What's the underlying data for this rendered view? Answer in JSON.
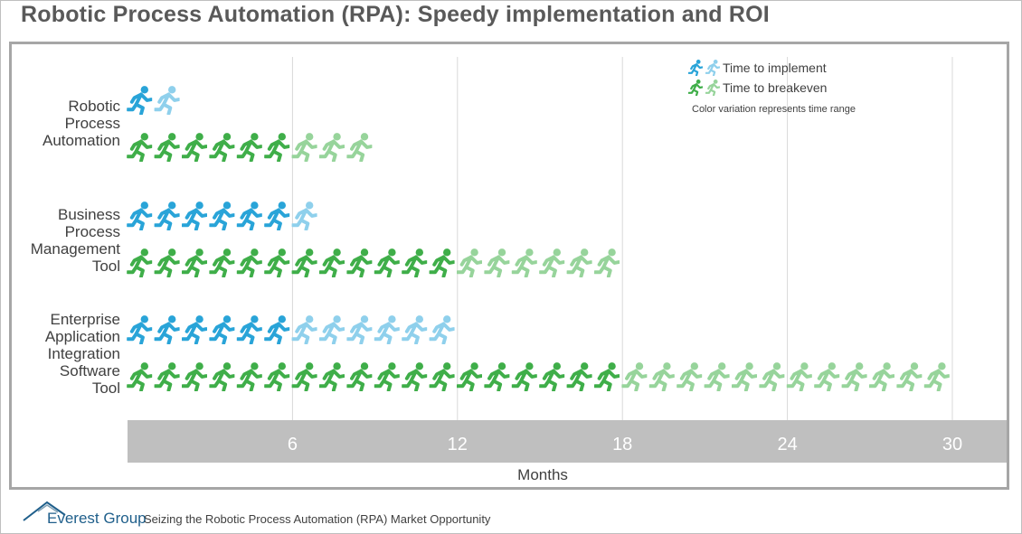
{
  "title": "Robotic Process Automation (RPA): Speedy implementation and ROI",
  "footer": {
    "logo": "Everest Group",
    "tagline": "Seizing the Robotic Process Automation (RPA) Market Opportunity"
  },
  "colors": {
    "implement_dark": "#29a4d8",
    "implement_light": "#8fd0ec",
    "breakeven_dark": "#3fae49",
    "breakeven_light": "#97d49b",
    "axis_band": "#bfbfbf",
    "grid": "#d9d9d9"
  },
  "chart_data": {
    "type": "bar",
    "subtype": "pictograph-horizontal-range",
    "icon": "running-person-icon",
    "categories": [
      [
        "Robotic",
        "Process",
        "Automation"
      ],
      [
        "Business",
        "Process",
        "Management",
        "Tool"
      ],
      [
        "Enterprise",
        "Application",
        "Integration",
        "Software",
        "Tool"
      ]
    ],
    "series": [
      {
        "name": "Time to implement",
        "min": [
          1,
          6,
          6
        ],
        "max": [
          2,
          7,
          12
        ]
      },
      {
        "name": "Time to breakeven",
        "min": [
          6,
          12,
          18
        ],
        "max": [
          9,
          18,
          30
        ]
      }
    ],
    "xlabel": "Months",
    "ylabel": "",
    "xticks": [
      6,
      12,
      18,
      24,
      30
    ],
    "xlim": [
      0,
      32
    ],
    "grid": true,
    "legend": {
      "position": "top-right",
      "entries": [
        "Time to implement",
        "Time to breakeven"
      ],
      "note": "Color variation represents time range"
    }
  }
}
